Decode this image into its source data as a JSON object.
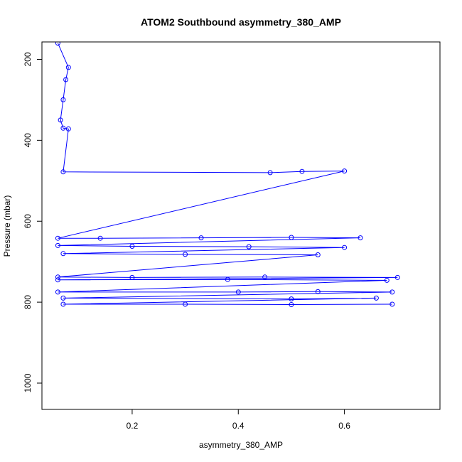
{
  "chart_data": {
    "type": "line",
    "title": "ATOM2 Southbound asymmetry_380_AMP",
    "xlabel": "asymmetry_380_AMP",
    "ylabel": "Pressure (mbar)",
    "xlim": [
      0.03,
      0.78
    ],
    "ylim": [
      1065,
      157
    ],
    "y_reversed": true,
    "x_ticks": [
      0.2,
      0.4,
      0.6
    ],
    "x_tick_labels": [
      "0.2",
      "0.4",
      "0.6"
    ],
    "y_ticks": [
      200,
      400,
      600,
      800,
      1000
    ],
    "y_tick_labels": [
      "200",
      "400",
      "600",
      "800",
      "1000"
    ],
    "marker": "open-circle",
    "grid": false,
    "legend": "none",
    "colors": {
      "series": "#0000ff",
      "axis": "#000000",
      "background": "#ffffff"
    },
    "series": [
      {
        "name": "",
        "points": [
          [
            0.06,
            160
          ],
          [
            0.08,
            220
          ],
          [
            0.075,
            250
          ],
          [
            0.07,
            300
          ],
          [
            0.065,
            350
          ],
          [
            0.07,
            370
          ],
          [
            0.08,
            372
          ],
          [
            0.07,
            478
          ],
          [
            0.46,
            480
          ],
          [
            0.52,
            477
          ],
          [
            0.6,
            476
          ],
          [
            0.06,
            642
          ],
          [
            0.14,
            642
          ],
          [
            0.33,
            641
          ],
          [
            0.5,
            640
          ],
          [
            0.63,
            641
          ],
          [
            0.06,
            660
          ],
          [
            0.2,
            662
          ],
          [
            0.42,
            663
          ],
          [
            0.6,
            665
          ],
          [
            0.07,
            680
          ],
          [
            0.3,
            682
          ],
          [
            0.55,
            683
          ],
          [
            0.06,
            738
          ],
          [
            0.2,
            739
          ],
          [
            0.45,
            738
          ],
          [
            0.7,
            739
          ],
          [
            0.06,
            745
          ],
          [
            0.38,
            744
          ],
          [
            0.68,
            746
          ],
          [
            0.06,
            775
          ],
          [
            0.4,
            775
          ],
          [
            0.55,
            774
          ],
          [
            0.69,
            775
          ],
          [
            0.07,
            790
          ],
          [
            0.5,
            792
          ],
          [
            0.66,
            790
          ],
          [
            0.07,
            805
          ],
          [
            0.3,
            805
          ],
          [
            0.5,
            806
          ],
          [
            0.69,
            805
          ]
        ]
      }
    ]
  }
}
